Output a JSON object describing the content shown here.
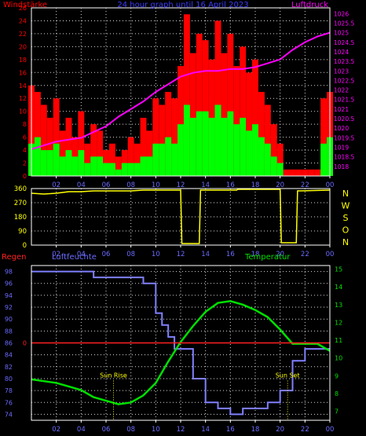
{
  "title": "24 hour graph until 16 April 2023",
  "colors": {
    "background": "#000000",
    "frame": "#ffffff",
    "grid": "#d8d8d8",
    "wind_gust": "#ff0000",
    "wind_avg": "#00ff00",
    "pressure": "#ff00ff",
    "direction": "#ffff00",
    "humidity": "#8080ff",
    "temperature": "#00e000",
    "rain": "#ff2020",
    "sun_text": "#ffff00",
    "axis_text": "#6b6bff"
  },
  "chart_data": [
    {
      "type": "bar",
      "id": "wind_pressure",
      "title": "24 hour graph until 16 April 2023",
      "left_label": "Windstärke",
      "right_label": "Luftdruck",
      "x_tick_labels": [
        "02",
        "04",
        "06",
        "08",
        "10",
        "12",
        "14",
        "16",
        "18",
        "20",
        "22",
        "00"
      ],
      "x_range_hours": [
        0,
        24
      ],
      "left_axis": {
        "ylim": [
          0,
          26
        ],
        "ticks": [
          "0",
          "2",
          "4",
          "6",
          "8",
          "10",
          "12",
          "14",
          "16",
          "18",
          "20",
          "22",
          "24",
          "26"
        ]
      },
      "right_axis": {
        "ylim": [
          1017.5,
          1026.3
        ],
        "ticks": [
          "1018",
          "1018.5",
          "1019",
          "1019.5",
          "1020",
          "1020.5",
          "1021",
          "1021.5",
          "1022",
          "1022.5",
          "1023",
          "1023.5",
          "1024",
          "1024.5",
          "1025",
          "1025.5",
          "1026"
        ]
      },
      "grid": true,
      "series": [
        {
          "key": "wind_gust",
          "kind": "bars",
          "hours": [
            0,
            0.5,
            1,
            1.5,
            2,
            2.5,
            3,
            3.5,
            4,
            4.5,
            5,
            5.5,
            6,
            6.5,
            7,
            7.5,
            8,
            8.5,
            9,
            9.5,
            10,
            10.5,
            11,
            11.5,
            12,
            12.5,
            13,
            13.5,
            14,
            14.5,
            15,
            15.5,
            16,
            16.5,
            17,
            17.5,
            18,
            18.5,
            19,
            19.5,
            20,
            20.5,
            21,
            21.5,
            22,
            22.5,
            23,
            23.5,
            24
          ],
          "values": [
            14,
            13,
            11,
            9,
            12,
            7,
            9,
            6,
            10,
            5,
            8,
            7,
            4,
            5,
            3,
            4,
            6,
            5,
            9,
            7,
            12,
            11,
            13,
            12,
            17,
            25,
            19,
            22,
            21,
            18,
            24,
            19,
            22,
            17,
            20,
            16,
            18,
            13,
            11,
            8,
            5,
            1,
            1,
            1,
            1,
            1,
            1,
            12,
            13
          ]
        },
        {
          "key": "wind_avg",
          "kind": "bars",
          "hours": [
            0,
            0.5,
            1,
            1.5,
            2,
            2.5,
            3,
            3.5,
            4,
            4.5,
            5,
            5.5,
            6,
            6.5,
            7,
            7.5,
            8,
            8.5,
            9,
            9.5,
            10,
            10.5,
            11,
            11.5,
            12,
            12.5,
            13,
            13.5,
            14,
            14.5,
            15,
            15.5,
            16,
            16.5,
            17,
            17.5,
            18,
            18.5,
            19,
            19.5,
            20,
            20.5,
            21,
            21.5,
            22,
            22.5,
            23,
            23.5,
            24
          ],
          "values": [
            5,
            6,
            4,
            4,
            5,
            3,
            4,
            3,
            4,
            2,
            3,
            3,
            2,
            2,
            1,
            2,
            2,
            2,
            3,
            3,
            5,
            5,
            6,
            5,
            8,
            11,
            9,
            10,
            10,
            9,
            11,
            9,
            10,
            8,
            9,
            7,
            8,
            6,
            5,
            3,
            2,
            0,
            0,
            0,
            0,
            0,
            0,
            5,
            6
          ]
        },
        {
          "key": "pressure",
          "kind": "line",
          "axis": "right",
          "hours": [
            0,
            1,
            2,
            3,
            4,
            5,
            6,
            7,
            8,
            9,
            10,
            11,
            12,
            13,
            14,
            15,
            16,
            17,
            18,
            19,
            20,
            21,
            22,
            23,
            24
          ],
          "values": [
            1018.9,
            1019.1,
            1019.3,
            1019.4,
            1019.5,
            1019.8,
            1020.1,
            1020.6,
            1021.0,
            1021.4,
            1021.9,
            1022.3,
            1022.7,
            1022.9,
            1023.0,
            1023.0,
            1023.1,
            1023.1,
            1023.2,
            1023.4,
            1023.6,
            1024.1,
            1024.5,
            1024.8,
            1025.0
          ]
        }
      ]
    },
    {
      "type": "line",
      "id": "wind_direction",
      "x_tick_labels": [
        "02",
        "04",
        "06",
        "08",
        "10",
        "12",
        "14",
        "16",
        "18",
        "20",
        "22",
        "00"
      ],
      "ylim": [
        0,
        360
      ],
      "y_ticks": [
        "0",
        "90",
        "180",
        "270",
        "360"
      ],
      "right_labels": [
        "N",
        "W",
        "S",
        "O",
        "N"
      ],
      "grid": true,
      "series": [
        {
          "key": "direction",
          "hours": [
            0,
            1,
            2,
            3,
            4,
            5,
            6,
            7,
            8,
            9,
            10,
            11,
            12,
            12.1,
            13.5,
            13.6,
            16.5,
            16.6,
            20,
            20.1,
            21.3,
            21.4,
            24
          ],
          "values": [
            330,
            325,
            330,
            340,
            340,
            345,
            345,
            345,
            345,
            350,
            350,
            350,
            350,
            10,
            10,
            350,
            350,
            355,
            355,
            15,
            15,
            345,
            350
          ]
        }
      ]
    },
    {
      "type": "line",
      "id": "humidity_temperature",
      "left_label": "Regen",
      "center_label": "Luftfeuchte",
      "right_label": "Temperatur",
      "x_tick_labels": [
        "02",
        "04",
        "06",
        "08",
        "10",
        "12",
        "14",
        "16",
        "18",
        "20",
        "22",
        "00"
      ],
      "left_axis": {
        "ylim": [
          73,
          99
        ],
        "ticks": [
          "74",
          "76",
          "78",
          "80",
          "82",
          "84",
          "86",
          "88",
          "90",
          "92",
          "94",
          "96",
          "98"
        ]
      },
      "right_axis": {
        "ylim": [
          6.5,
          15.2
        ],
        "ticks": [
          "7",
          "8",
          "9",
          "10",
          "11",
          "12",
          "13",
          "14",
          "15"
        ]
      },
      "rain_axis": {
        "value": "0",
        "at_humidity": 86
      },
      "grid": true,
      "annotations": [
        {
          "text": "Sun Rise",
          "hour": 6.6
        },
        {
          "text": "Sun Set",
          "hour": 20.6
        }
      ],
      "series": [
        {
          "key": "humidity",
          "axis": "left",
          "hours": [
            0,
            1,
            2,
            3,
            4,
            5,
            6,
            7,
            8,
            9,
            10,
            10.5,
            11,
            11.5,
            12,
            13,
            14,
            15,
            16,
            17,
            18,
            19,
            20,
            21,
            22,
            23,
            24
          ],
          "values": [
            98,
            98,
            98,
            98,
            98,
            97,
            97,
            97,
            97,
            96,
            91,
            89,
            87,
            85,
            85,
            80,
            76,
            75,
            74,
            75,
            75,
            76,
            78,
            83,
            85,
            85,
            85
          ]
        },
        {
          "key": "temperature",
          "axis": "right",
          "hours": [
            0,
            1,
            2,
            3,
            4,
            5,
            6,
            7,
            8,
            9,
            10,
            11,
            12,
            13,
            14,
            15,
            16,
            17,
            18,
            19,
            20,
            21,
            22,
            23,
            24
          ],
          "values": [
            8.8,
            8.7,
            8.6,
            8.4,
            8.2,
            7.8,
            7.6,
            7.4,
            7.5,
            7.9,
            8.6,
            9.8,
            10.9,
            11.8,
            12.6,
            13.1,
            13.2,
            13.0,
            12.7,
            12.3,
            11.6,
            10.8,
            10.8,
            10.8,
            10.4
          ]
        },
        {
          "key": "rain",
          "axis": "rain",
          "hours": [
            0,
            24
          ],
          "values": [
            0,
            0
          ]
        }
      ]
    }
  ]
}
